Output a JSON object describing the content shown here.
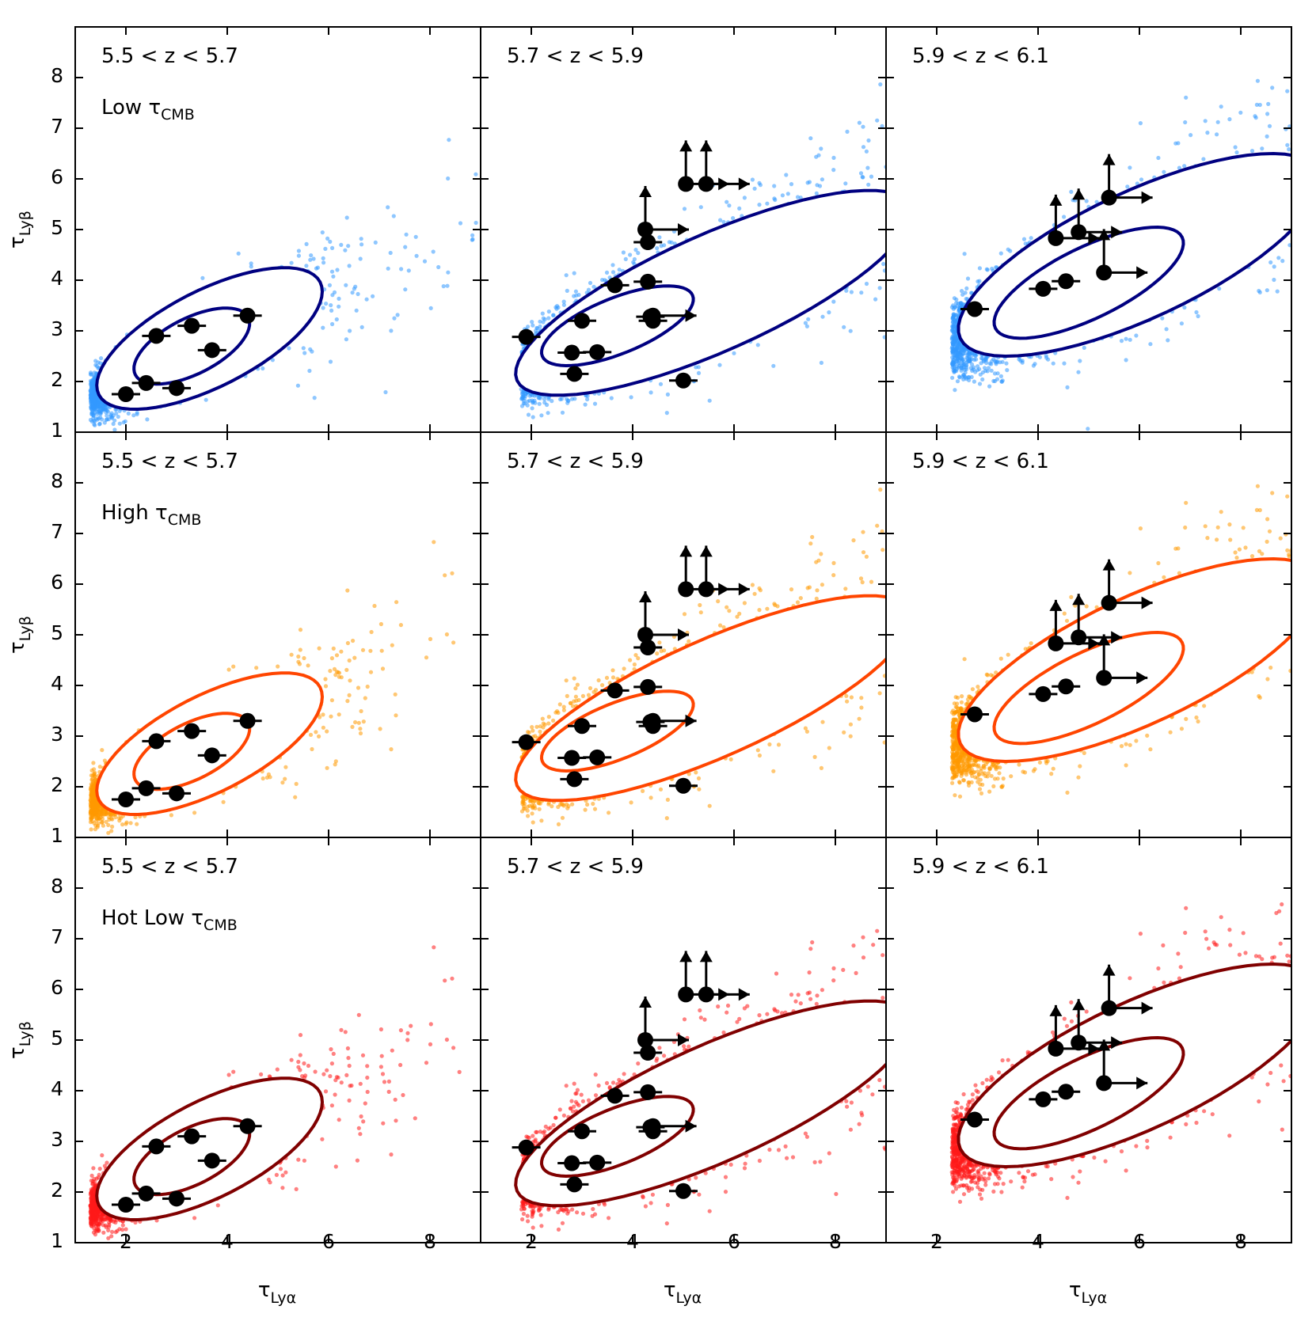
{
  "chart_data": {
    "type": "scatter",
    "grid": false,
    "layout": "3x3 panels, shared axes",
    "x_range": [
      1.0,
      9.0
    ],
    "y_range": [
      1.0,
      9.0
    ],
    "xlabel": "τLyα",
    "ylabel": "τLyβ",
    "xlabel_main": "τ",
    "xlabel_sub": "Lyα",
    "ylabel_main": "τ",
    "ylabel_sub": "Lyβ",
    "x_ticks": [
      "2",
      "4",
      "6",
      "8"
    ],
    "y_ticks": [
      "1",
      "2",
      "3",
      "4",
      "5",
      "6",
      "7",
      "8"
    ],
    "redshift_labels": [
      "5.5 < z < 5.7",
      "5.7 < z < 5.9",
      "5.9 < z < 6.1"
    ],
    "models": [
      {
        "label_prefix": "Low ",
        "label_tau": "τ",
        "label_sub": "CMB",
        "scatter_color": "#3399ff",
        "contour_color": "#000080"
      },
      {
        "label_prefix": "High ",
        "label_tau": "τ",
        "label_sub": "CMB",
        "scatter_color": "#ff9900",
        "contour_color": "#ff4500"
      },
      {
        "label_prefix": "Hot Low ",
        "label_tau": "τ",
        "label_sub": "CMB",
        "scatter_color": "#ff1a1a",
        "contour_color": "#800000"
      }
    ],
    "observations": [
      {
        "redshift": "5.5 < z < 5.7",
        "points": [
          {
            "x": 2.0,
            "y": 1.75
          },
          {
            "x": 2.4,
            "y": 1.97
          },
          {
            "x": 2.6,
            "y": 2.9
          },
          {
            "x": 3.0,
            "y": 1.87
          },
          {
            "x": 3.3,
            "y": 3.1
          },
          {
            "x": 3.7,
            "y": 2.62
          },
          {
            "x": 4.4,
            "y": 3.3
          }
        ],
        "lower_limits": []
      },
      {
        "redshift": "5.7 < z < 5.9",
        "points": [
          {
            "x": 1.9,
            "y": 2.88
          },
          {
            "x": 2.8,
            "y": 2.57
          },
          {
            "x": 2.85,
            "y": 2.15
          },
          {
            "x": 3.0,
            "y": 3.2
          },
          {
            "x": 3.3,
            "y": 2.58
          },
          {
            "x": 3.65,
            "y": 3.9
          },
          {
            "x": 4.3,
            "y": 4.75
          },
          {
            "x": 4.3,
            "y": 3.97
          },
          {
            "x": 4.35,
            "y": 3.28
          },
          {
            "x": 4.4,
            "y": 3.2
          },
          {
            "x": 5.0,
            "y": 2.02
          }
        ],
        "lower_limits": [
          {
            "x": 4.25,
            "y": 5.0,
            "dir": "xy"
          },
          {
            "x": 5.05,
            "y": 5.9,
            "dir": "xy"
          },
          {
            "x": 5.45,
            "y": 5.9,
            "dir": "xy"
          },
          {
            "x": 4.4,
            "y": 3.3,
            "dir": "x"
          }
        ]
      },
      {
        "redshift": "5.9 < z < 6.1",
        "points": [
          {
            "x": 2.75,
            "y": 3.43
          },
          {
            "x": 4.1,
            "y": 3.83
          },
          {
            "x": 4.55,
            "y": 3.98
          }
        ],
        "lower_limits": [
          {
            "x": 4.35,
            "y": 4.83,
            "dir": "xy"
          },
          {
            "x": 4.8,
            "y": 4.95,
            "dir": "xy"
          },
          {
            "x": 5.3,
            "y": 4.15,
            "dir": "xy"
          },
          {
            "x": 5.4,
            "y": 5.63,
            "dir": "xy"
          }
        ]
      }
    ]
  }
}
